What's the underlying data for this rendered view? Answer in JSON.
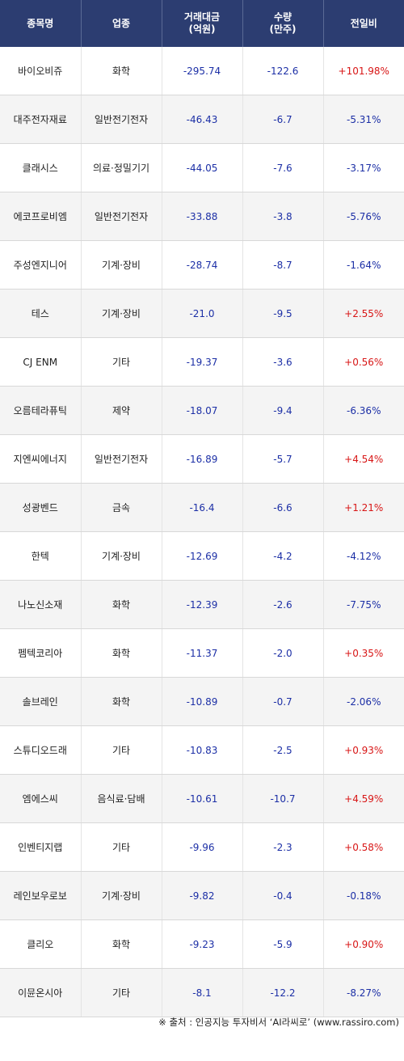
{
  "headers": {
    "name": "종목명",
    "sector": "업종",
    "amount_line1": "거래대금",
    "amount_line2": "(억원)",
    "qty_line1": "수량",
    "qty_line2": "(만주)",
    "change": "전일비"
  },
  "rows": [
    {
      "name": "바이오비쥬",
      "sector": "화학",
      "amount": "-295.74",
      "qty": "-122.6",
      "change": "+101.98%",
      "dir": "up"
    },
    {
      "name": "대주전자재료",
      "sector": "일반전기전자",
      "amount": "-46.43",
      "qty": "-6.7",
      "change": "-5.31%",
      "dir": "down"
    },
    {
      "name": "클래시스",
      "sector": "의료·정밀기기",
      "amount": "-44.05",
      "qty": "-7.6",
      "change": "-3.17%",
      "dir": "down"
    },
    {
      "name": "에코프로비엠",
      "sector": "일반전기전자",
      "amount": "-33.88",
      "qty": "-3.8",
      "change": "-5.76%",
      "dir": "down"
    },
    {
      "name": "주성엔지니어",
      "sector": "기계·장비",
      "amount": "-28.74",
      "qty": "-8.7",
      "change": "-1.64%",
      "dir": "down"
    },
    {
      "name": "테스",
      "sector": "기계·장비",
      "amount": "-21.0",
      "qty": "-9.5",
      "change": "+2.55%",
      "dir": "up"
    },
    {
      "name": "CJ ENM",
      "sector": "기타",
      "amount": "-19.37",
      "qty": "-3.6",
      "change": "+0.56%",
      "dir": "up"
    },
    {
      "name": "오름테라퓨틱",
      "sector": "제약",
      "amount": "-18.07",
      "qty": "-9.4",
      "change": "-6.36%",
      "dir": "down"
    },
    {
      "name": "지엔씨에너지",
      "sector": "일반전기전자",
      "amount": "-16.89",
      "qty": "-5.7",
      "change": "+4.54%",
      "dir": "up"
    },
    {
      "name": "성광벤드",
      "sector": "금속",
      "amount": "-16.4",
      "qty": "-6.6",
      "change": "+1.21%",
      "dir": "up"
    },
    {
      "name": "한텍",
      "sector": "기계·장비",
      "amount": "-12.69",
      "qty": "-4.2",
      "change": "-4.12%",
      "dir": "down"
    },
    {
      "name": "나노신소재",
      "sector": "화학",
      "amount": "-12.39",
      "qty": "-2.6",
      "change": "-7.75%",
      "dir": "down"
    },
    {
      "name": "펨텍코리아",
      "sector": "화학",
      "amount": "-11.37",
      "qty": "-2.0",
      "change": "+0.35%",
      "dir": "up"
    },
    {
      "name": "솔브레인",
      "sector": "화학",
      "amount": "-10.89",
      "qty": "-0.7",
      "change": "-2.06%",
      "dir": "down"
    },
    {
      "name": "스튜디오드래",
      "sector": "기타",
      "amount": "-10.83",
      "qty": "-2.5",
      "change": "+0.93%",
      "dir": "up"
    },
    {
      "name": "엠에스씨",
      "sector": "음식료·담배",
      "amount": "-10.61",
      "qty": "-10.7",
      "change": "+4.59%",
      "dir": "up"
    },
    {
      "name": "인벤티지랩",
      "sector": "기타",
      "amount": "-9.96",
      "qty": "-2.3",
      "change": "+0.58%",
      "dir": "up"
    },
    {
      "name": "레인보우로보",
      "sector": "기계·장비",
      "amount": "-9.82",
      "qty": "-0.4",
      "change": "-0.18%",
      "dir": "down"
    },
    {
      "name": "클리오",
      "sector": "화학",
      "amount": "-9.23",
      "qty": "-5.9",
      "change": "+0.90%",
      "dir": "up"
    },
    {
      "name": "이뮨온시아",
      "sector": "기타",
      "amount": "-8.1",
      "qty": "-12.2",
      "change": "-8.27%",
      "dir": "down"
    }
  ],
  "footer": "※ 출처 : 인공지능 투자비서 ‘AI라씨로’ (www.rassiro.com)",
  "colors": {
    "header_bg": "#2c3d71",
    "up": "#d81616",
    "down": "#1c2fa6"
  }
}
